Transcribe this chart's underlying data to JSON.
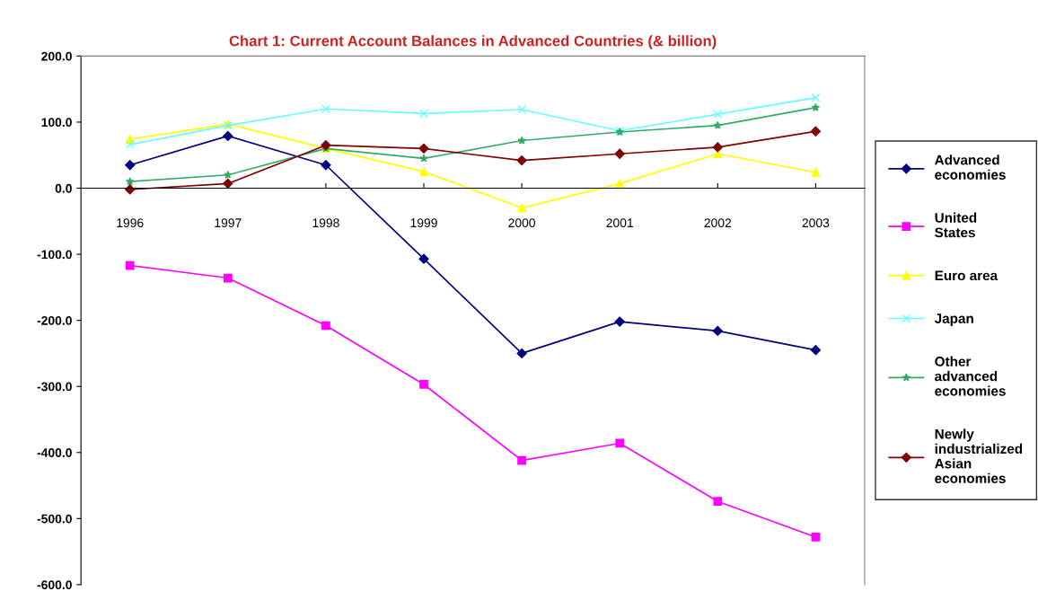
{
  "chart_data": {
    "type": "line",
    "title": "Chart 1: Current Account Balances in Advanced Countries (& billion)",
    "categories": [
      "1996",
      "1997",
      "1998",
      "1999",
      "2000",
      "2001",
      "2002",
      "2003"
    ],
    "series": [
      {
        "name": "Advanced economies",
        "color": "#000080",
        "marker": "diamond",
        "values": [
          35,
          79,
          35,
          -107,
          -250,
          -202,
          -216,
          -245
        ]
      },
      {
        "name": "United States",
        "color": "#ff00ff",
        "marker": "square",
        "values": [
          -117,
          -136,
          -208,
          -297,
          -412,
          -386,
          -474,
          -528
        ]
      },
      {
        "name": "Euro area",
        "color": "#ffff00",
        "marker": "triangle",
        "values": [
          74,
          97,
          60,
          25,
          -30,
          7,
          52,
          24
        ]
      },
      {
        "name": "Japan",
        "color": "#66ffff",
        "marker": "cross",
        "values": [
          66,
          95,
          120,
          113,
          119,
          87,
          112,
          137
        ]
      },
      {
        "name": "Other advanced economies",
        "color": "#33aa66",
        "marker": "star",
        "values": [
          10,
          20,
          60,
          45,
          72,
          85,
          95,
          122
        ]
      },
      {
        "name": "Newly industrialized Asian economies",
        "color": "#800000",
        "marker": "diamond",
        "values": [
          -2,
          7,
          65,
          60,
          42,
          52,
          62,
          86
        ]
      }
    ],
    "ylim": [
      -600,
      200
    ],
    "yticks": [
      {
        "value": 200,
        "label": "200.0"
      },
      {
        "value": 100,
        "label": "100.0"
      },
      {
        "value": 0,
        "label": "0.0"
      },
      {
        "value": -100,
        "label": "-100.0"
      },
      {
        "value": -200,
        "label": "-200.0"
      },
      {
        "value": -300,
        "label": "-300.0"
      },
      {
        "value": -400,
        "label": "-400.0"
      },
      {
        "value": -500,
        "label": "-500.0"
      },
      {
        "value": -600,
        "label": "-600.0"
      }
    ],
    "grid": false,
    "legend": "right",
    "line_style": "solid"
  }
}
